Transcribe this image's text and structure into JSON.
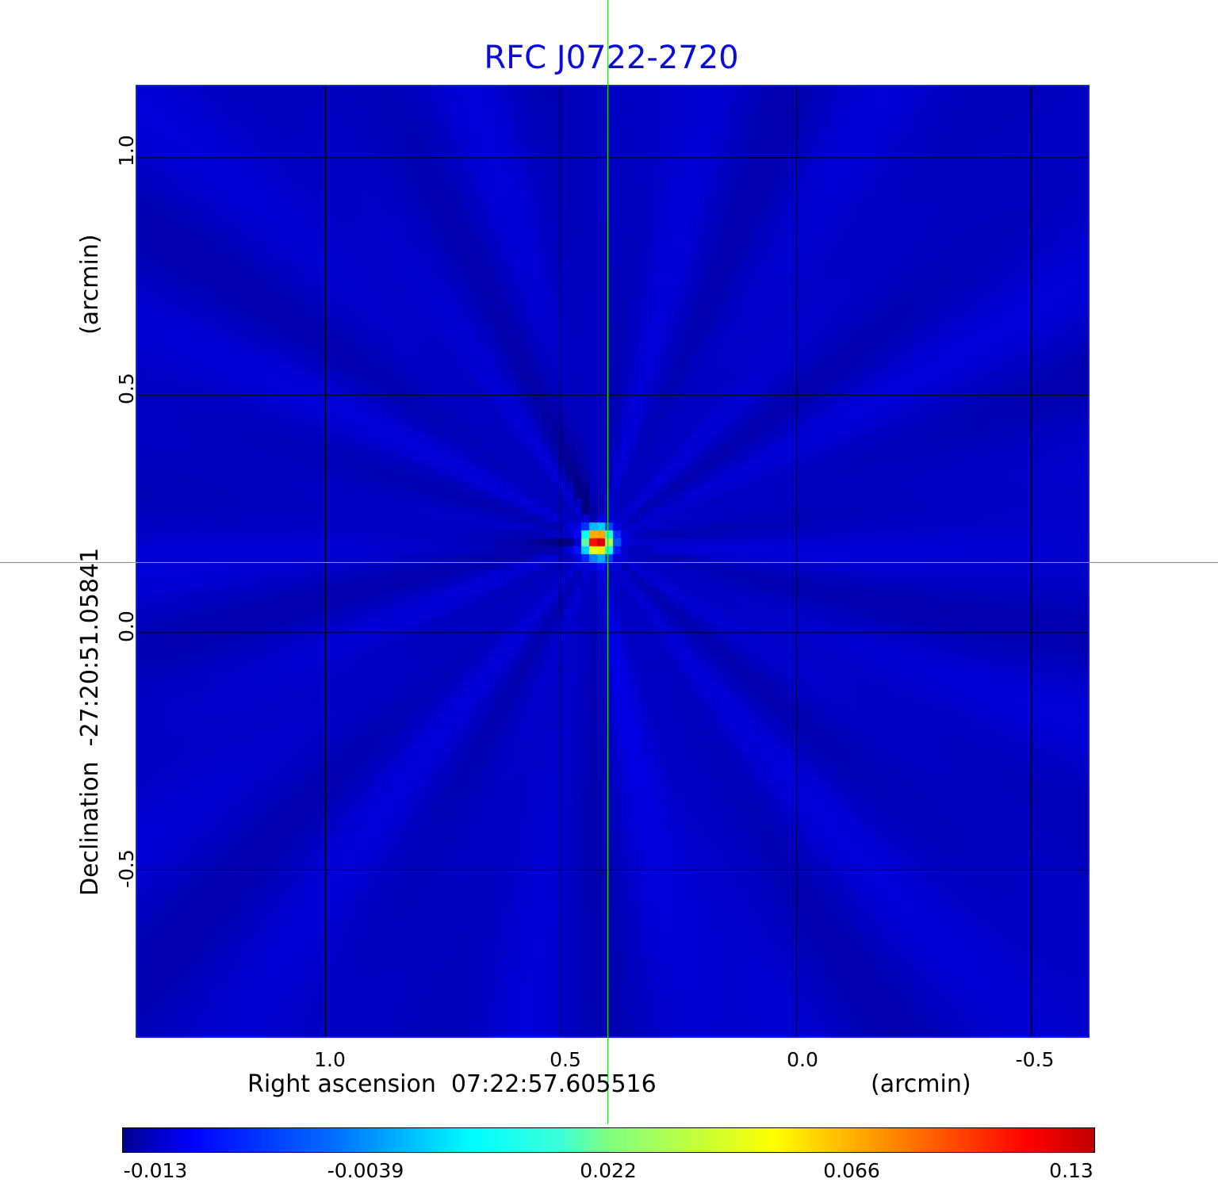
{
  "chart_data": {
    "type": "heatmap",
    "title": "RFC J0722-2720",
    "xlabel": "Right ascension  07:22:57.605516",
    "xunit": "(arcmin)",
    "ylabel": "Declination  -27:20:51.05841",
    "yunit": "(arcmin)",
    "x_ticks": [
      "1.0",
      "0.5",
      "0.0",
      "-0.5"
    ],
    "y_ticks": [
      "1.0",
      "0.5",
      "0.0",
      "-0.5"
    ],
    "xlim": [
      1.4,
      -0.62
    ],
    "ylim": [
      -0.85,
      1.15
    ],
    "grid": true,
    "crosshair": {
      "x": 0.4,
      "y": 0.15,
      "color": "#22e022"
    },
    "peak": {
      "x": 0.43,
      "y": 0.2,
      "value": 0.13
    },
    "colorbar": {
      "ticks": [
        "-0.013",
        "-0.0039",
        "0.022",
        "0.066",
        "0.13"
      ],
      "colormap": "jet",
      "range": [
        -0.013,
        0.13
      ],
      "placement": "bottom"
    }
  }
}
